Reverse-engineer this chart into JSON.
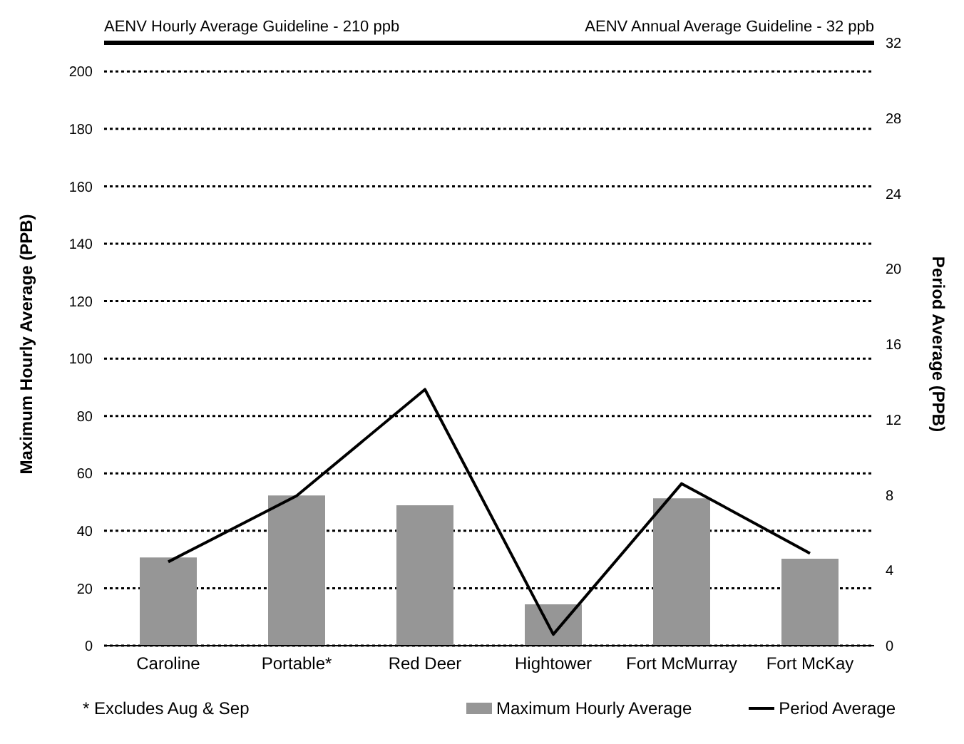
{
  "chart_data": {
    "type": "bar",
    "categories": [
      "Caroline",
      "Portable*",
      "Red Deer",
      "Hightower",
      "Fort McMurray",
      "Fort McKay"
    ],
    "series": [
      {
        "name": "Maximum Hourly Average",
        "color": "#969696",
        "values": [
          30.7,
          52.3,
          48.9,
          14.4,
          51.3,
          30.3
        ]
      },
      {
        "name": "Period Average",
        "type": "line",
        "axis": "y2",
        "color": "#000000",
        "values": [
          4.45,
          7.95,
          13.6,
          0.6,
          8.6,
          4.9
        ]
      }
    ],
    "ylabel": "Maximum Hourly Average (PPB)",
    "y2label": "Period Average (PPB)",
    "ylim": [
      0,
      210
    ],
    "yticks": [
      0,
      20,
      40,
      60,
      80,
      100,
      120,
      140,
      160,
      180,
      200
    ],
    "y2lim": [
      0,
      32
    ],
    "y2ticks": [
      0,
      4,
      8,
      12,
      16,
      20,
      24,
      28,
      32
    ],
    "grid": "y",
    "legend": "bottom",
    "marker": "none",
    "line_style": "solid",
    "ref_lines": [
      {
        "axis": "y",
        "value": 210,
        "label": "AENV Hourly Average Guideline - 210 ppb",
        "color": "#000000"
      }
    ],
    "annotations": [
      "AENV Annual Average Guideline - 32 ppb",
      "* Excludes Aug & Sep"
    ]
  }
}
